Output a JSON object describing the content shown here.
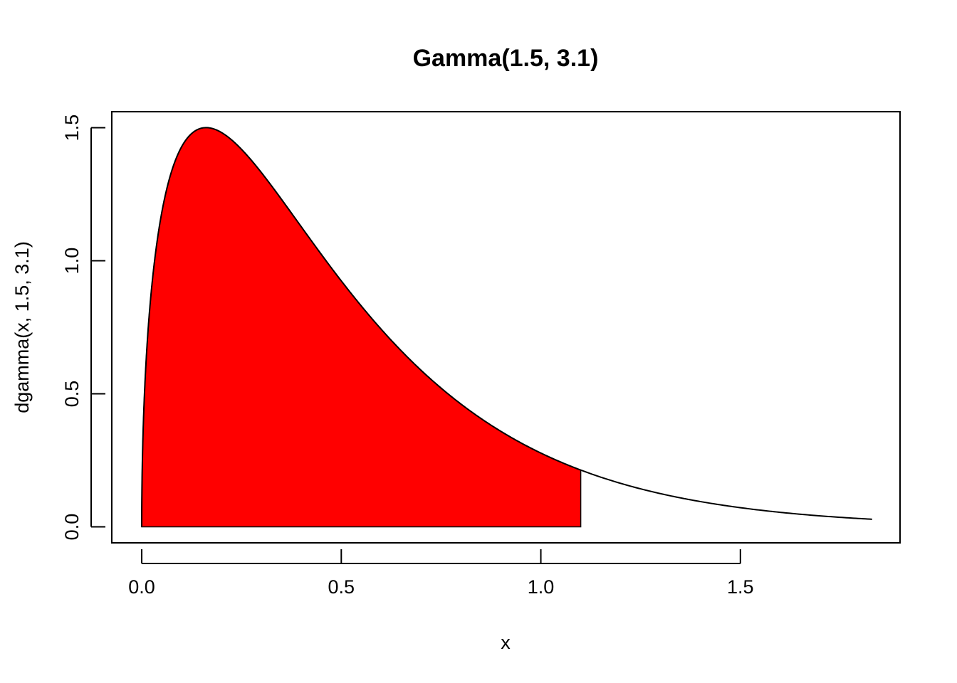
{
  "chart_data": {
    "type": "area",
    "title": "Gamma(1.5, 3.1)",
    "xlabel": "x",
    "ylabel": "dgamma(x, 1.5, 3.1)",
    "distribution": {
      "name": "gamma",
      "shape": 1.5,
      "rate": 3.1
    },
    "curve_x_range": [
      0,
      1.83
    ],
    "shaded_x_range": [
      0,
      1.1
    ],
    "xlim": [
      -0.075,
      1.9
    ],
    "ylim": [
      -0.06,
      1.56
    ],
    "x_ticks": [
      0.0,
      0.5,
      1.0,
      1.5
    ],
    "x_tick_labels": [
      "0.0",
      "0.5",
      "1.0",
      "1.5"
    ],
    "y_ticks": [
      0.0,
      0.5,
      1.0,
      1.5
    ],
    "y_tick_labels": [
      "0.0",
      "0.5",
      "1.0",
      "1.5"
    ],
    "fill_color": "#ff0000",
    "line_color": "#000000",
    "grid": false,
    "legend": "none"
  }
}
